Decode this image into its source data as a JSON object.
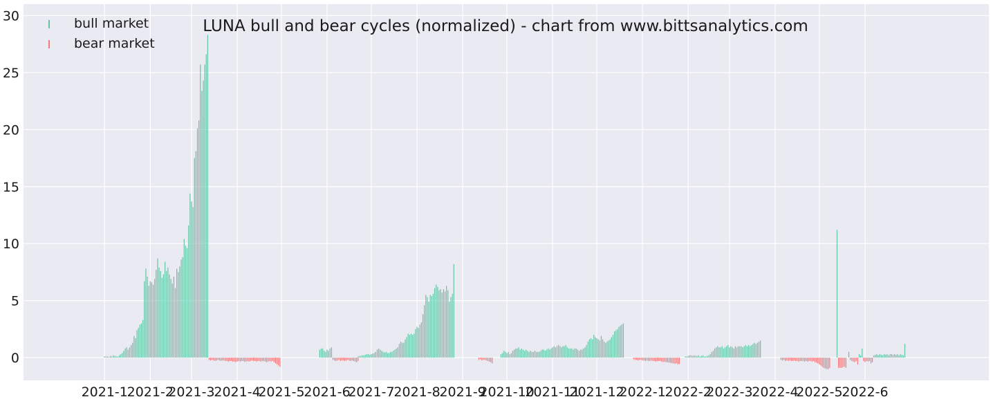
{
  "chart_data": {
    "type": "bar",
    "title": "LUNA bull and bear cycles (normalized)  - chart from www.bittsanalytics.com",
    "xlabel": "",
    "ylabel": "",
    "ylim": [
      -2,
      31
    ],
    "grid": true,
    "legend_position": "top-left",
    "y_ticks": [
      0,
      5,
      10,
      15,
      20,
      25,
      30
    ],
    "x_ticks": [
      "2021-1",
      "2021-2",
      "2021-3",
      "2021-4",
      "2021-5",
      "2021-6",
      "2021-7",
      "2021-8",
      "2021-9",
      "2021-10",
      "2021-11",
      "2021-12",
      "2022-1",
      "2022-2",
      "2022-3",
      "2022-4",
      "2022-5",
      "2022-6"
    ],
    "series": [
      {
        "name": "bull market",
        "color": "#66c2a5",
        "segments": [
          {
            "start": "2021-01-01",
            "values": [
              0.1,
              0.1,
              0.1,
              0.05,
              0.15,
              0.1,
              0.2,
              0.15,
              0.1,
              0.1,
              0.2,
              0.3,
              0.4,
              0.6,
              0.8,
              0.9,
              0.7,
              0.9,
              1.1,
              1.3,
              1.9,
              1.7,
              2.4,
              2.6,
              2.9,
              3.0,
              3.3,
              6.7,
              7.8,
              7.1,
              6.3,
              6.7,
              6.6,
              6.4,
              6.9,
              7.7,
              8.7,
              7.9,
              7.6,
              7.0,
              7.3,
              8.4,
              7.6,
              7.9,
              7.3,
              6.9,
              6.5,
              7.1,
              6.1,
              7.8,
              7.5,
              8.0,
              8.6,
              8.8,
              10.4,
              9.8,
              9.6,
              11.6,
              14.4,
              13.7,
              13.2,
              17.5,
              18.1,
              20.1,
              20.8,
              25.7,
              23.4,
              24.3,
              25.7,
              26.6,
              28.3
            ]
          },
          {
            "start": "2021-05-27",
            "values": [
              0.7,
              0.8,
              0.8,
              0.6,
              0.5,
              0.7,
              0.6,
              0.8,
              0.9
            ]
          },
          {
            "start": "2021-06-22",
            "values": [
              0.1,
              0.15,
              0.15,
              0.2,
              0.2,
              0.25,
              0.3,
              0.3,
              0.25,
              0.3,
              0.35,
              0.4,
              0.5,
              0.7,
              0.8,
              0.7,
              0.6,
              0.5,
              0.45,
              0.5,
              0.4,
              0.4,
              0.5,
              0.5,
              0.6,
              0.7,
              0.8,
              0.9,
              1.2,
              1.4,
              1.3,
              1.3,
              1.6,
              1.8,
              2.1,
              2.0,
              2.1,
              2.0,
              2.1,
              2.5,
              2.7,
              2.6,
              2.9,
              3.1,
              3.8,
              4.6,
              5.5,
              5.3,
              4.9,
              5.5,
              5.4,
              5.6,
              6.1,
              6.4,
              6.2,
              5.9,
              6.0,
              5.7,
              6.0,
              5.8,
              6.3,
              5.9,
              4.9,
              5.3,
              5.6,
              8.2
            ]
          },
          {
            "start": "2021-09-27",
            "values": [
              0.3,
              0.4,
              0.6,
              0.5,
              0.4,
              0.5,
              0.3,
              0.4,
              0.6,
              0.7,
              0.8,
              0.8,
              0.9,
              0.7,
              0.8,
              0.7,
              0.6,
              0.7,
              0.6,
              0.5,
              0.6,
              0.5,
              0.5,
              0.6,
              0.5,
              0.5,
              0.5,
              0.6,
              0.7,
              0.7,
              0.6,
              0.7,
              0.8,
              0.7,
              0.8,
              0.9,
              1.0,
              0.9,
              1.0,
              1.1,
              1.0,
              0.9,
              1.0,
              1.0,
              1.1,
              0.9,
              0.8,
              0.8,
              0.8,
              0.7,
              0.8,
              0.8,
              0.7,
              0.6,
              0.7,
              0.7,
              0.8,
              0.9,
              1.1,
              1.4,
              1.6,
              1.7,
              1.6,
              2.0,
              1.8,
              1.7,
              1.6,
              1.5,
              1.9,
              1.6,
              1.4,
              1.3,
              1.4,
              1.5,
              1.6,
              1.8,
              2.0,
              2.3,
              2.4,
              2.5,
              2.7,
              2.8,
              2.9,
              3.0
            ]
          },
          {
            "start": "2022-01-30",
            "values": [
              0.1,
              0.1,
              0.15,
              0.2,
              0.2,
              0.15,
              0.2,
              0.15,
              0.15,
              0.2,
              0.1,
              0.15,
              0.2,
              0.1,
              0.1,
              0.15,
              0.2,
              0.3,
              0.5,
              0.6,
              0.8,
              0.9,
              1.0,
              0.9,
              0.9,
              1.0,
              0.8,
              0.9,
              1.0,
              1.1,
              0.9,
              1.0,
              0.9,
              0.8,
              1.0,
              0.9,
              1.0,
              1.0,
              1.0,
              0.9,
              1.0,
              1.1,
              1.0,
              1.1,
              1.0,
              1.1,
              1.2,
              1.3,
              1.2,
              1.3,
              1.4,
              1.5
            ]
          },
          {
            "start": "2022-05-13",
            "values": [
              11.2
            ]
          },
          {
            "start": "2022-05-21",
            "values": [
              0.5
            ]
          },
          {
            "start": "2022-05-28",
            "values": [
              0.3,
              0.2,
              0.8
            ]
          },
          {
            "start": "2022-06-07",
            "values": [
              0.2,
              0.25,
              0.3,
              0.2,
              0.3,
              0.25,
              0.2,
              0.3,
              0.25,
              0.3,
              0.2,
              0.3,
              0.3,
              0.25,
              0.3,
              0.25,
              0.3,
              0.2,
              0.3,
              0.25,
              0.2,
              1.2
            ]
          }
        ]
      },
      {
        "name": "bear market",
        "color": "#f4777a",
        "segments": [
          {
            "start": "2021-03-13",
            "values": [
              -0.2,
              -0.25,
              -0.2,
              -0.25,
              -0.3,
              -0.25,
              -0.2,
              -0.25,
              -0.3,
              -0.25,
              -0.25,
              -0.3,
              -0.3,
              -0.35,
              -0.3,
              -0.3,
              -0.35,
              -0.35,
              -0.4,
              -0.35,
              -0.3,
              -0.35,
              -0.3,
              -0.3,
              -0.35,
              -0.35,
              -0.3,
              -0.35,
              -0.3,
              -0.25,
              -0.3,
              -0.3,
              -0.35,
              -0.3,
              -0.3,
              -0.35,
              -0.3,
              -0.3,
              -0.35,
              -0.4,
              -0.35,
              -0.3,
              -0.35,
              -0.3,
              -0.4,
              -0.5,
              -0.6,
              -0.7,
              -0.8
            ]
          },
          {
            "start": "2021-06-05",
            "values": [
              -0.2,
              -0.25,
              -0.3,
              -0.25,
              -0.2,
              -0.3,
              -0.25,
              -0.25,
              -0.3,
              -0.25,
              -0.2,
              -0.25,
              -0.3,
              -0.25,
              -0.3,
              -0.35,
              -0.4,
              -0.3
            ]
          },
          {
            "start": "2021-09-12",
            "values": [
              -0.2,
              -0.15,
              -0.25,
              -0.2,
              -0.2,
              -0.25,
              -0.3,
              -0.35,
              -0.4,
              -0.5
            ]
          },
          {
            "start": "2021-12-26",
            "values": [
              -0.15,
              -0.2,
              -0.2,
              -0.25,
              -0.2,
              -0.2,
              -0.25,
              -0.25,
              -0.3,
              -0.25,
              -0.3,
              -0.3,
              -0.25,
              -0.3,
              -0.3,
              -0.35,
              -0.3,
              -0.3,
              -0.3,
              -0.35,
              -0.4,
              -0.35,
              -0.4,
              -0.4,
              -0.45,
              -0.45,
              -0.5,
              -0.5,
              -0.55,
              -0.5,
              -0.6,
              -0.55
            ]
          },
          {
            "start": "2022-04-05",
            "values": [
              -0.2,
              -0.25,
              -0.2,
              -0.3,
              -0.25,
              -0.3,
              -0.25,
              -0.3,
              -0.3,
              -0.25,
              -0.3,
              -0.3,
              -0.35,
              -0.3,
              -0.3,
              -0.3,
              -0.35,
              -0.3,
              -0.35,
              -0.3,
              -0.3,
              -0.35,
              -0.3,
              -0.4,
              -0.45,
              -0.5,
              -0.6,
              -0.7,
              -0.8,
              -0.9,
              -0.95,
              -1.0,
              -1.0,
              -0.9
            ]
          },
          {
            "start": "2022-05-14",
            "values": [
              -0.9,
              -0.9,
              -0.9,
              -0.85,
              -0.8,
              -0.9
            ]
          },
          {
            "start": "2022-05-22",
            "values": [
              -0.2,
              -0.3,
              -0.35,
              -0.4,
              -0.3,
              -0.6
            ]
          },
          {
            "start": "2022-05-31",
            "values": [
              -0.3,
              -0.4,
              -0.3,
              -0.35,
              -0.3,
              -0.5,
              -0.4
            ]
          }
        ]
      }
    ]
  }
}
